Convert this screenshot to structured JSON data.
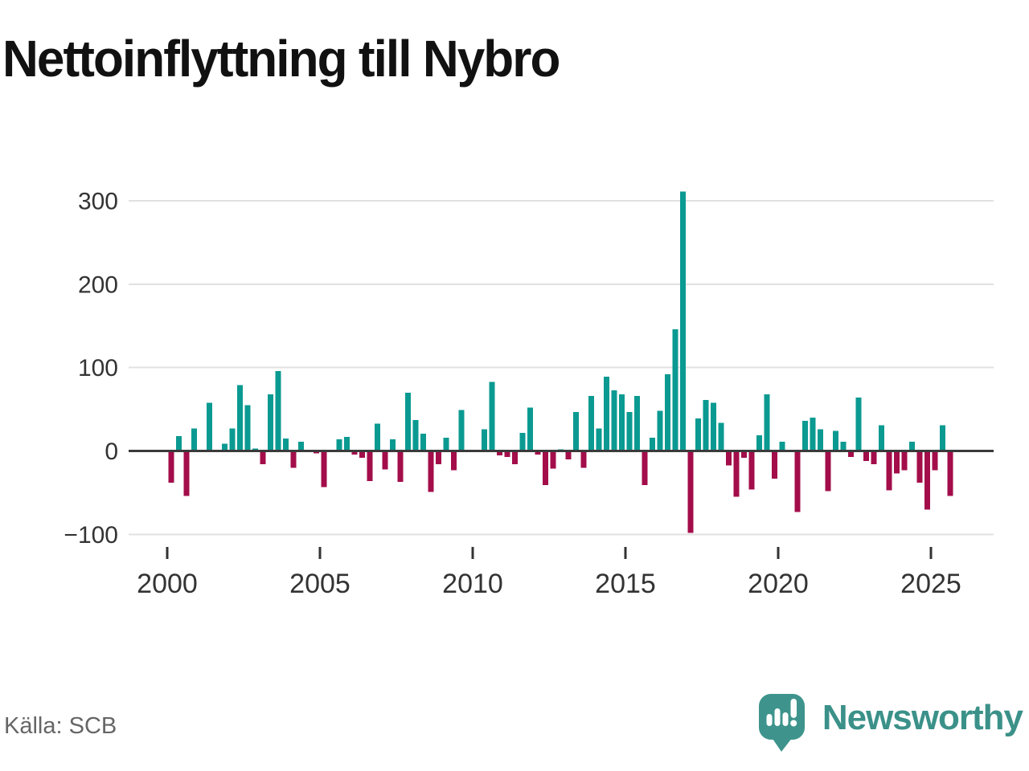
{
  "title": "Nettoinflyttning till Nybro",
  "source": "Källa: SCB",
  "logo": {
    "text": "Newsworthy",
    "icon": "speech-bubble-chart-icon"
  },
  "colors": {
    "positive_bar": "#0b9a91",
    "negative_bar": "#a30d4a",
    "zero_line": "#3a3a3a",
    "gridline": "#e1e1e1",
    "axis_text": "#333333",
    "title_text": "#111111",
    "source_text": "#666666",
    "logo_teal": "#3e948c",
    "logo_text_teal": "#3b9189"
  },
  "chart_data": {
    "type": "bar",
    "title": "Nettoinflyttning till Nybro",
    "xlabel": "",
    "ylabel": "",
    "grid": true,
    "ylim": [
      -100,
      320
    ],
    "y_tick_values": [
      300,
      200,
      100,
      0,
      -100
    ],
    "y_tick_labels": [
      "300",
      "200",
      "100",
      "0",
      "−100"
    ],
    "x_tick_years": [
      2000,
      2005,
      2010,
      2015,
      2020,
      2025
    ],
    "x_tick_labels": [
      "2000",
      "2005",
      "2010",
      "2015",
      "2020",
      "2025"
    ],
    "categories": [
      "2000 Q1",
      "2000 Q2",
      "2000 Q3",
      "2000 Q4",
      "2001 Q1",
      "2001 Q2",
      "2001 Q3",
      "2001 Q4",
      "2002 Q1",
      "2002 Q2",
      "2002 Q3",
      "2002 Q4",
      "2003 Q1",
      "2003 Q2",
      "2003 Q3",
      "2003 Q4",
      "2004 Q1",
      "2004 Q2",
      "2004 Q3",
      "2004 Q4",
      "2005 Q1",
      "2005 Q2",
      "2005 Q3",
      "2005 Q4",
      "2006 Q1",
      "2006 Q2",
      "2006 Q3",
      "2006 Q4",
      "2007 Q1",
      "2007 Q2",
      "2007 Q3",
      "2007 Q4",
      "2008 Q1",
      "2008 Q2",
      "2008 Q3",
      "2008 Q4",
      "2009 Q1",
      "2009 Q2",
      "2009 Q3",
      "2009 Q4",
      "2010 Q1",
      "2010 Q2",
      "2010 Q3",
      "2010 Q4",
      "2011 Q1",
      "2011 Q2",
      "2011 Q3",
      "2011 Q4",
      "2012 Q1",
      "2012 Q2",
      "2012 Q3",
      "2012 Q4",
      "2013 Q1",
      "2013 Q2",
      "2013 Q3",
      "2013 Q4",
      "2014 Q1",
      "2014 Q2",
      "2014 Q3",
      "2014 Q4",
      "2015 Q1",
      "2015 Q2",
      "2015 Q3",
      "2015 Q4",
      "2016 Q1",
      "2016 Q2",
      "2016 Q3",
      "2016 Q4",
      "2017 Q1",
      "2017 Q2",
      "2017 Q3",
      "2017 Q4",
      "2018 Q1",
      "2018 Q2",
      "2018 Q3",
      "2018 Q4",
      "2019 Q1",
      "2019 Q2",
      "2019 Q3",
      "2019 Q4",
      "2020 Q1",
      "2020 Q2",
      "2020 Q3",
      "2020 Q4",
      "2021 Q1",
      "2021 Q2",
      "2021 Q3",
      "2021 Q4",
      "2022 Q1",
      "2022 Q2",
      "2022 Q3",
      "2022 Q4",
      "2023 Q1",
      "2023 Q2",
      "2023 Q3",
      "2023 Q4",
      "2024 Q1",
      "2024 Q2",
      "2024 Q3",
      "2024 Q4",
      "2025 Q1",
      "2025 Q2",
      "2025 Q3"
    ],
    "values": [
      -38,
      18,
      -54,
      27,
      0,
      58,
      0,
      9,
      27,
      79,
      55,
      3,
      -16,
      68,
      96,
      15,
      -20,
      11,
      0,
      -3,
      -43,
      0,
      14,
      17,
      -4,
      -8,
      -36,
      33,
      -22,
      14,
      -37,
      70,
      37,
      21,
      -49,
      -16,
      16,
      -23,
      49,
      0,
      0,
      26,
      83,
      -5,
      -7,
      -16,
      22,
      52,
      -4,
      -41,
      -21,
      2,
      -10,
      47,
      -20,
      66,
      27,
      89,
      73,
      68,
      47,
      66,
      -41,
      16,
      48,
      92,
      146,
      311,
      -98,
      39,
      61,
      58,
      34,
      -17,
      -55,
      -8,
      -46,
      19,
      68,
      -33,
      11,
      0,
      -73,
      36,
      40,
      26,
      -48,
      24,
      11,
      -7,
      64,
      -12,
      -16,
      31,
      -47,
      -27,
      -23,
      11,
      -38,
      -70,
      -23,
      31,
      -54
    ],
    "positive_color": "#0b9a91",
    "negative_color": "#a30d4a",
    "legend": "none"
  }
}
